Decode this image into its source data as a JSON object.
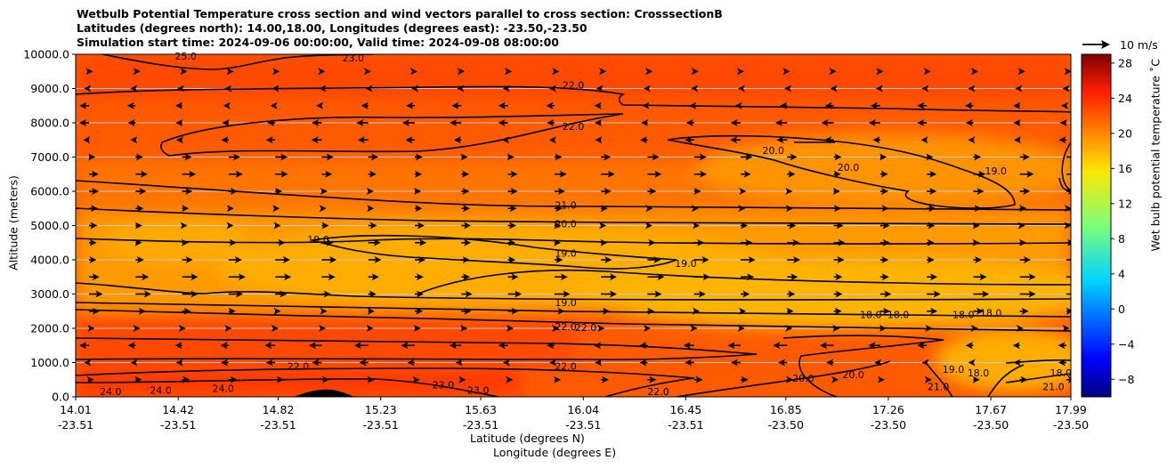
{
  "chart_data": {
    "type": "contourf",
    "title_lines": [
      "Wetbulb Potential Temperature cross section and wind vectors parallel to cross section: CrosssectionB",
      "Latitudes (degrees north): 14.00,18.00, Longitudes (degrees east): -23.50,-23.50",
      "Simulation start time: 2024-09-06 00:00:00, Valid time: 2024-09-08 08:00:00"
    ],
    "xlabel_1": "Latitude (degrees N)",
    "xlabel_2": "Longitude (degrees E)",
    "ylabel": "Altitude (meters)",
    "ylim": [
      0,
      10000
    ],
    "yticks": [
      "0.0",
      "1000.0",
      "2000.0",
      "3000.0",
      "4000.0",
      "5000.0",
      "6000.0",
      "7000.0",
      "8000.0",
      "9000.0",
      "10000.0"
    ],
    "xticks": [
      {
        "lat": "14.01",
        "lon": "-23.51"
      },
      {
        "lat": "14.42",
        "lon": "-23.51"
      },
      {
        "lat": "14.82",
        "lon": "-23.51"
      },
      {
        "lat": "15.23",
        "lon": "-23.51"
      },
      {
        "lat": "15.63",
        "lon": "-23.51"
      },
      {
        "lat": "16.04",
        "lon": "-23.51"
      },
      {
        "lat": "16.45",
        "lon": "-23.51"
      },
      {
        "lat": "16.85",
        "lon": "-23.50"
      },
      {
        "lat": "17.26",
        "lon": "-23.50"
      },
      {
        "lat": "17.67",
        "lon": "-23.50"
      },
      {
        "lat": "17.99",
        "lon": "-23.50"
      }
    ],
    "colorbar": {
      "label": "Wet bulb potential temperature ˚C",
      "colormap": "jet",
      "range": [
        -10,
        29
      ],
      "ticks": [
        "28",
        "24",
        "20",
        "16",
        "12",
        "8",
        "4",
        "0",
        "−4",
        "−8"
      ]
    },
    "reference_vector": "10 m/s",
    "contour_levels_labeled": [
      "25.0",
      "23.0",
      "22.0",
      "20.0",
      "19.0",
      "21.0",
      "18.0",
      "24.0"
    ],
    "contour_labels": [
      {
        "text": "22.0",
        "lat": 16.0,
        "alt": 9100
      },
      {
        "text": "22.0",
        "lat": 16.0,
        "alt": 7900
      },
      {
        "text": "21.0",
        "lat": 15.97,
        "alt": 5600
      },
      {
        "text": "20.0",
        "lat": 15.97,
        "alt": 5050
      },
      {
        "text": "19.0",
        "lat": 15.97,
        "alt": 4200
      },
      {
        "text": "19.0",
        "lat": 15.97,
        "alt": 2750
      },
      {
        "text": "22.0",
        "lat": 15.97,
        "alt": 2050
      },
      {
        "text": "22.0",
        "lat": 16.05,
        "alt": 2030
      },
      {
        "text": "22.0",
        "lat": 15.97,
        "alt": 900
      },
      {
        "text": "20.0",
        "lat": 16.8,
        "alt": 7200
      },
      {
        "text": "20.0",
        "lat": 17.1,
        "alt": 6700
      },
      {
        "text": "19.0",
        "lat": 17.69,
        "alt": 6600
      },
      {
        "text": "19.0",
        "lat": 14.98,
        "alt": 4600
      },
      {
        "text": "19.0",
        "lat": 16.45,
        "alt": 3900
      },
      {
        "text": "18.0",
        "lat": 17.19,
        "alt": 2400
      },
      {
        "text": "18.0",
        "lat": 17.3,
        "alt": 2400
      },
      {
        "text": "18.0",
        "lat": 17.56,
        "alt": 2400
      },
      {
        "text": "18.0",
        "lat": 17.67,
        "alt": 2450
      },
      {
        "text": "18.0",
        "lat": 17.62,
        "alt": 700
      },
      {
        "text": "18.0",
        "lat": 17.95,
        "alt": 700
      },
      {
        "text": "22.0",
        "lat": 14.9,
        "alt": 900
      },
      {
        "text": "20.0",
        "lat": 16.92,
        "alt": 550
      },
      {
        "text": "20.0",
        "lat": 17.12,
        "alt": 650
      },
      {
        "text": "19.0",
        "lat": 17.52,
        "alt": 800
      },
      {
        "text": "21.0",
        "lat": 17.46,
        "alt": 300
      },
      {
        "text": "21.0",
        "lat": 17.92,
        "alt": 300
      },
      {
        "text": "22.0",
        "lat": 16.34,
        "alt": 150
      },
      {
        "text": "23.0",
        "lat": 15.48,
        "alt": 350
      },
      {
        "text": "23.0",
        "lat": 15.62,
        "alt": 200
      },
      {
        "text": "24.0",
        "lat": 14.15,
        "alt": 150
      },
      {
        "text": "24.0",
        "lat": 14.35,
        "alt": 200
      },
      {
        "text": "24.0",
        "lat": 14.6,
        "alt": 250
      },
      {
        "text": "25.0",
        "lat": 14.45,
        "alt": 9950
      },
      {
        "text": "23.0",
        "lat": 15.12,
        "alt": 9900
      }
    ],
    "wind_rows": [
      {
        "alt": 9500,
        "dir": 1,
        "mag": 0.3
      },
      {
        "alt": 9000,
        "dir": -1,
        "mag": 0.3
      },
      {
        "alt": 8500,
        "dir": -1,
        "mag": 0.55
      },
      {
        "alt": 8000,
        "dir": -1,
        "mag": 0.7
      },
      {
        "alt": 7500,
        "dir": -1,
        "mag": 0.6
      },
      {
        "alt": 7000,
        "dir": 1,
        "mag": 0.7
      },
      {
        "alt": 6500,
        "dir": 1,
        "mag": 0.8
      },
      {
        "alt": 6000,
        "dir": 1,
        "mag": 0.6
      },
      {
        "alt": 5500,
        "dir": 1,
        "mag": 0.5
      },
      {
        "alt": 5000,
        "dir": 1,
        "mag": 0.55
      },
      {
        "alt": 4500,
        "dir": 1,
        "mag": 0.7
      },
      {
        "alt": 4000,
        "dir": 1,
        "mag": 0.85
      },
      {
        "alt": 3500,
        "dir": 1,
        "mag": 0.95
      },
      {
        "alt": 3000,
        "dir": 1,
        "mag": 0.9
      },
      {
        "alt": 2500,
        "dir": 1,
        "mag": 0.6
      },
      {
        "alt": 2000,
        "dir": 1,
        "mag": 0.35
      },
      {
        "alt": 1500,
        "dir": -1,
        "mag": 0.8
      },
      {
        "alt": 1000,
        "dir": -1,
        "mag": 0.55
      },
      {
        "alt": 500,
        "dir": 1,
        "mag": 0.5
      }
    ]
  }
}
